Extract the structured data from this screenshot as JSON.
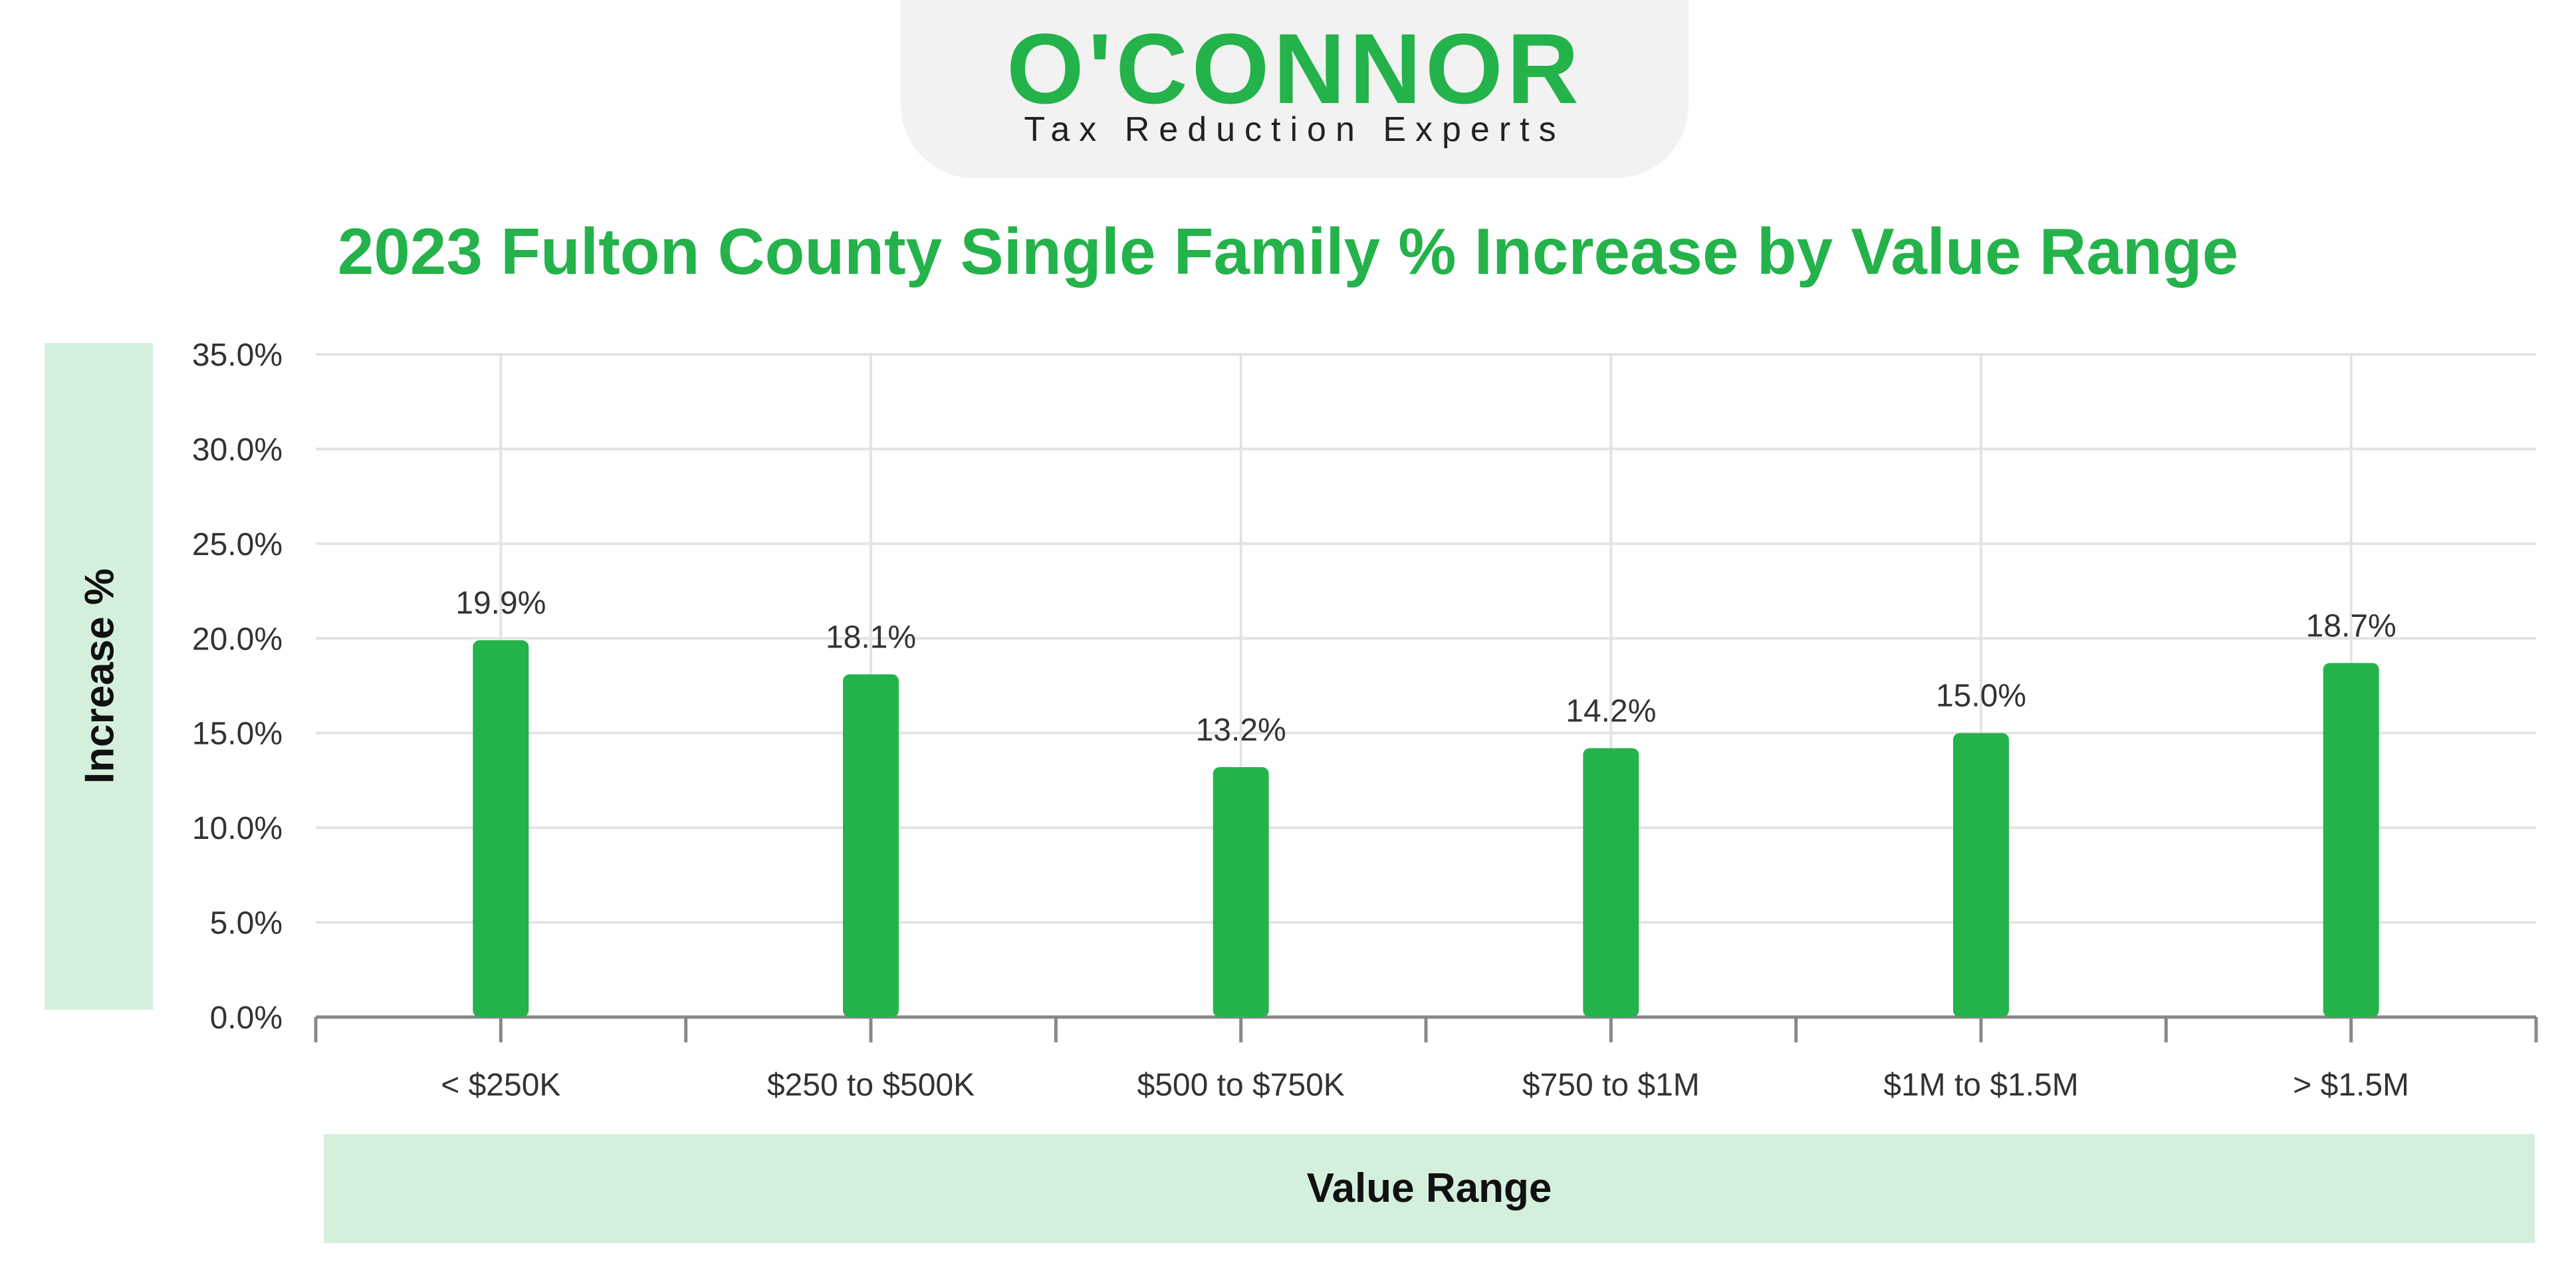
{
  "logo": {
    "name": "O'CONNOR",
    "tagline": "Tax Reduction Experts"
  },
  "colors": {
    "brand_green": "#24b24a",
    "label_panel": "#d5efdd",
    "grid": "#e3e3e3",
    "axis": "#888888",
    "text_dark": "#333333"
  },
  "chart_data": {
    "type": "bar",
    "title": "2023 Fulton County Single Family % Increase by Value Range",
    "xlabel": "Value Range",
    "ylabel": "Increase %",
    "categories": [
      "< $250K",
      "$250 to $500K",
      "$500 to $750K",
      "$750 to $1M",
      "$1M to $1.5M",
      "> $1.5M"
    ],
    "values": [
      19.9,
      18.1,
      13.2,
      14.2,
      15.0,
      18.7
    ],
    "value_labels": [
      "19.9%",
      "18.1%",
      "13.2%",
      "14.2%",
      "15.0%",
      "18.7%"
    ],
    "ylim": [
      0,
      35
    ],
    "yticks": [
      0,
      5,
      10,
      15,
      20,
      25,
      30,
      35
    ],
    "ytick_labels": [
      "0.0%",
      "5.0%",
      "10.0%",
      "15.0%",
      "20.0%",
      "25.0%",
      "30.0%",
      "35.0%"
    ],
    "grid": true,
    "legend": "none"
  }
}
